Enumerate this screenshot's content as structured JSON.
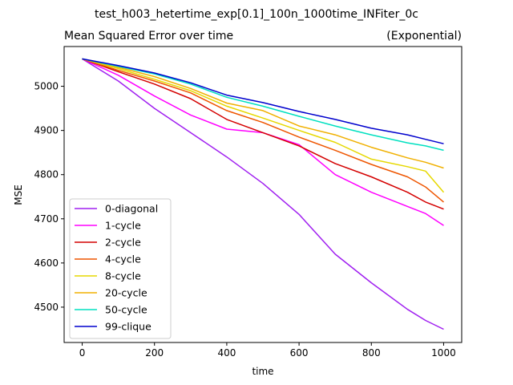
{
  "chart_data": {
    "type": "line",
    "suptitle": "test_h003_hetertime_exp[0.1]_100n_1000time_INFiter_0c",
    "title": "Mean Squared Error over time",
    "title_right": "(Exponential)",
    "xlabel": "time",
    "ylabel": "MSE",
    "xlim": [
      -50,
      1050
    ],
    "ylim": [
      4420,
      5090
    ],
    "xticks": [
      0,
      200,
      400,
      600,
      800,
      1000
    ],
    "yticks": [
      4500,
      4600,
      4700,
      4800,
      4900,
      5000
    ],
    "grid": false,
    "legend_position": "lower-left",
    "x": [
      0,
      100,
      200,
      300,
      400,
      500,
      600,
      700,
      800,
      900,
      950,
      1000
    ],
    "series": [
      {
        "name": "0-diagonal",
        "color": "#a020f0",
        "values": [
          5062,
          5012,
          4950,
          4895,
          4840,
          4780,
          4710,
          4620,
          4555,
          4495,
          4470,
          4450
        ]
      },
      {
        "name": "1-cycle",
        "color": "#ff00ff",
        "values": [
          5062,
          5025,
          4978,
          4935,
          4903,
          4895,
          4868,
          4800,
          4760,
          4728,
          4712,
          4685
        ]
      },
      {
        "name": "2-cycle",
        "color": "#d40000",
        "values": [
          5062,
          5033,
          5005,
          4972,
          4925,
          4895,
          4865,
          4825,
          4795,
          4760,
          4738,
          4722
        ]
      },
      {
        "name": "4-cycle",
        "color": "#ee5500",
        "values": [
          5062,
          5036,
          5012,
          4985,
          4945,
          4918,
          4885,
          4855,
          4823,
          4795,
          4772,
          4738
        ]
      },
      {
        "name": "8-cycle",
        "color": "#e6d800",
        "values": [
          5062,
          5040,
          5016,
          4990,
          4955,
          4928,
          4900,
          4873,
          4835,
          4818,
          4808,
          4760
        ]
      },
      {
        "name": "20-cycle",
        "color": "#f0b000",
        "values": [
          5062,
          5043,
          5022,
          4995,
          4962,
          4945,
          4910,
          4890,
          4862,
          4838,
          4828,
          4815
        ]
      },
      {
        "name": "50-cycle",
        "color": "#00e0c0",
        "values": [
          5062,
          5045,
          5028,
          5005,
          4975,
          4955,
          4932,
          4910,
          4890,
          4872,
          4865,
          4855
        ]
      },
      {
        "name": "99-clique",
        "color": "#0000cd",
        "values": [
          5062,
          5047,
          5030,
          5008,
          4980,
          4963,
          4943,
          4925,
          4905,
          4890,
          4880,
          4870
        ]
      }
    ]
  }
}
